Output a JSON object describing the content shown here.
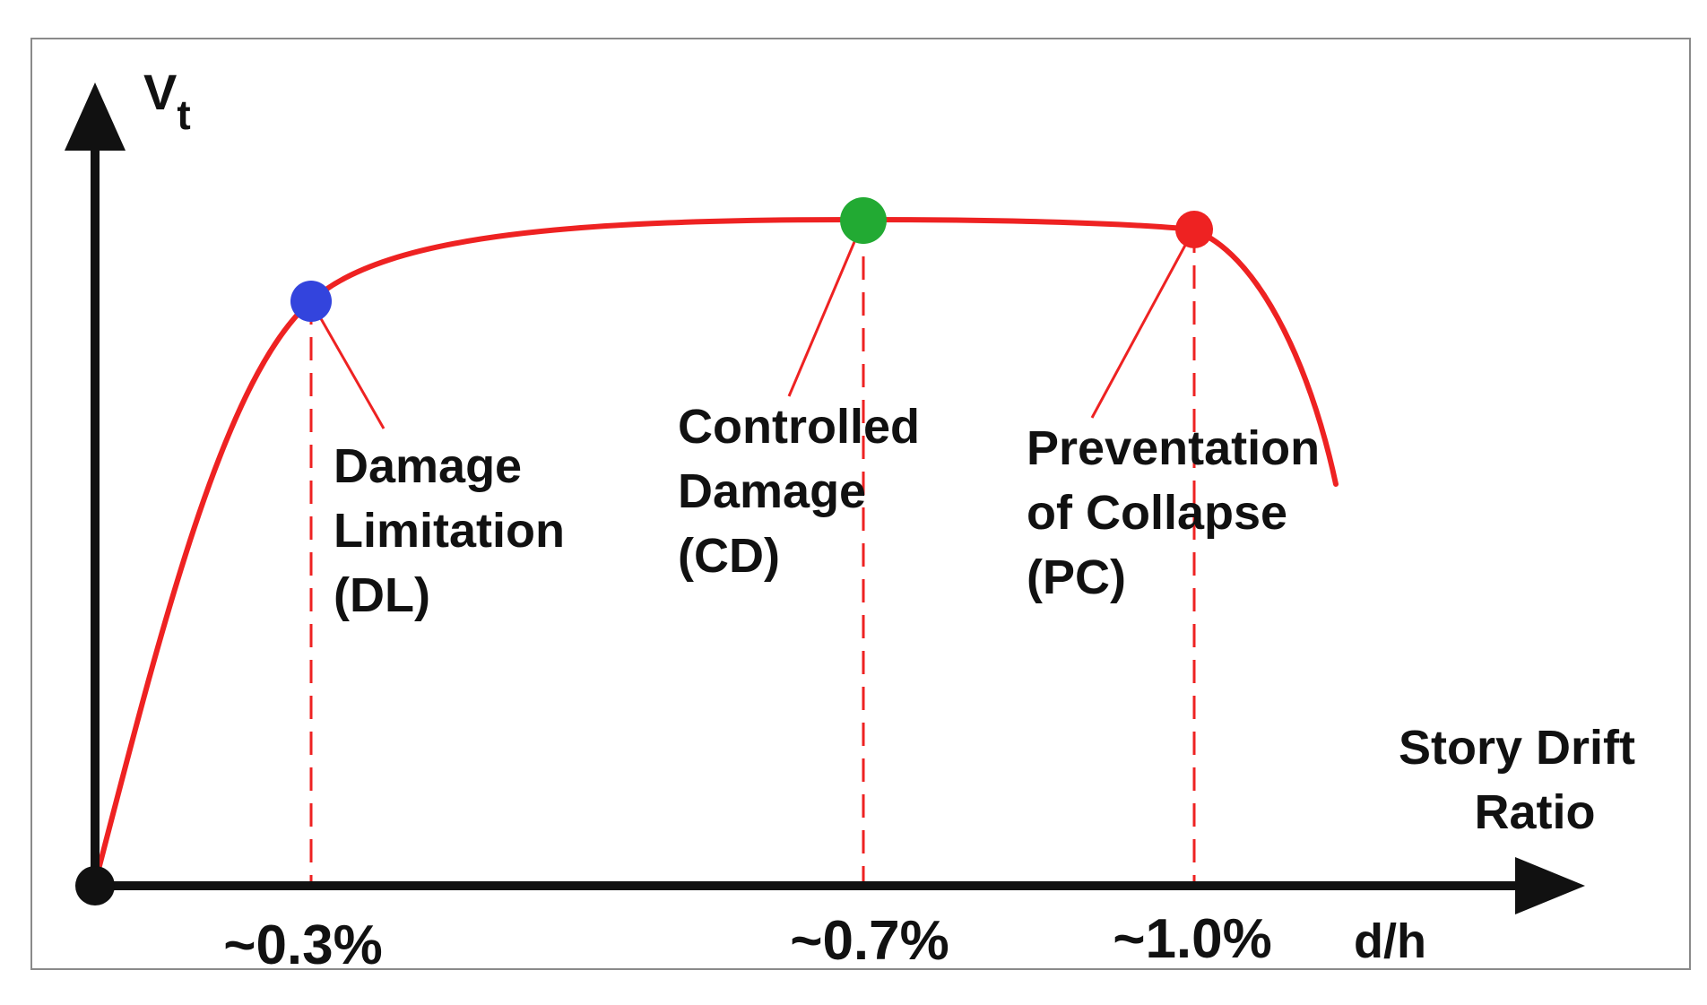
{
  "colors": {
    "curve": "#ee2222",
    "axis": "#111111",
    "frame": "#8a8a8a",
    "dl_point": "#3344dd",
    "cd_point": "#22aa33",
    "pc_point": "#ee2222"
  },
  "axes": {
    "y_label": "V",
    "y_label_sub": "t",
    "x_label_line1": "Story Drift",
    "x_label_line2": "Ratio",
    "x_unit": "d/h"
  },
  "points": [
    {
      "key": "dl",
      "value_label": "~0.3%",
      "name_lines": [
        "Damage",
        "Limitation",
        "(DL)"
      ]
    },
    {
      "key": "cd",
      "value_label": "~0.7%",
      "name_lines": [
        "Controlled",
        "Damage",
        "(CD)"
      ]
    },
    {
      "key": "pc",
      "value_label": "~1.0%",
      "name_lines": [
        "Preventation",
        "of Collapse",
        "(PC)"
      ]
    }
  ]
}
